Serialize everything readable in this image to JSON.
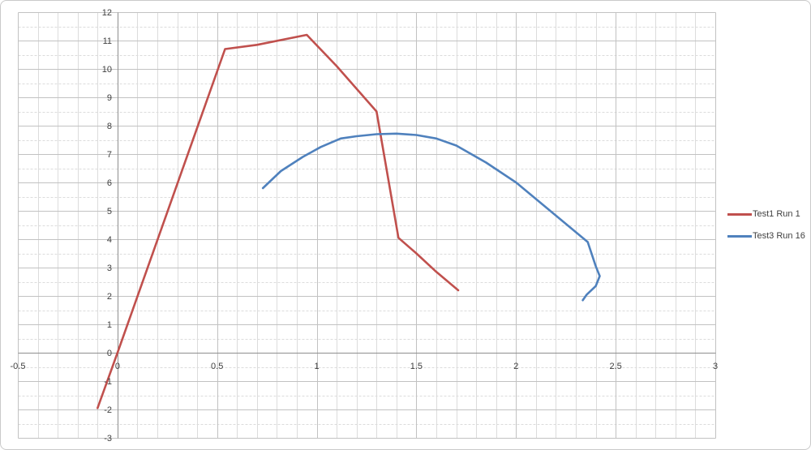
{
  "chart_data": {
    "type": "line",
    "title": "",
    "xlabel": "",
    "ylabel": "",
    "xlim": [
      -0.5,
      3
    ],
    "ylim": [
      -3,
      12
    ],
    "x_major_step": 0.5,
    "x_minor_step": 0.1,
    "y_major_step": 1,
    "y_minor_step": 0.5,
    "grid": "major and minor gridlines on",
    "legend_position": "right middle",
    "x_tick_labels": [
      "-0.5",
      "0",
      "0.5",
      "1",
      "1.5",
      "2",
      "2.5",
      "3"
    ],
    "y_tick_labels": [
      "-3",
      "-2",
      "-1",
      "0",
      "1",
      "2",
      "3",
      "4",
      "5",
      "6",
      "7",
      "8",
      "9",
      "10",
      "11",
      "12"
    ],
    "axis_color": "#8f8f8f",
    "major_grid_color": "#c2c2c2",
    "minor_grid_color": "#dcdcdc",
    "tick_label_color": "#3f3f3f",
    "series": [
      {
        "name": "Test1 Run 1",
        "color": "#c0504d",
        "points": [
          [
            -0.1,
            -1.95
          ],
          [
            0,
            0
          ],
          [
            0.54,
            10.7
          ],
          [
            0.7,
            10.85
          ],
          [
            0.95,
            11.2
          ],
          [
            1.1,
            10.1
          ],
          [
            1.3,
            8.5
          ],
          [
            1.41,
            4.05
          ],
          [
            1.5,
            3.5
          ],
          [
            1.6,
            2.85
          ],
          [
            1.71,
            2.2
          ]
        ]
      },
      {
        "name": "Test3 Run 16",
        "color": "#4f81bd",
        "points": [
          [
            0.73,
            5.8
          ],
          [
            0.82,
            6.4
          ],
          [
            0.93,
            6.9
          ],
          [
            1.02,
            7.25
          ],
          [
            1.12,
            7.55
          ],
          [
            1.2,
            7.63
          ],
          [
            1.3,
            7.7
          ],
          [
            1.4,
            7.72
          ],
          [
            1.5,
            7.67
          ],
          [
            1.6,
            7.55
          ],
          [
            1.7,
            7.3
          ],
          [
            1.85,
            6.7
          ],
          [
            2.0,
            6.0
          ],
          [
            2.36,
            3.9
          ],
          [
            2.4,
            3.05
          ],
          [
            2.42,
            2.7
          ],
          [
            2.4,
            2.35
          ],
          [
            2.355,
            2.05
          ],
          [
            2.335,
            1.85
          ]
        ]
      }
    ]
  }
}
